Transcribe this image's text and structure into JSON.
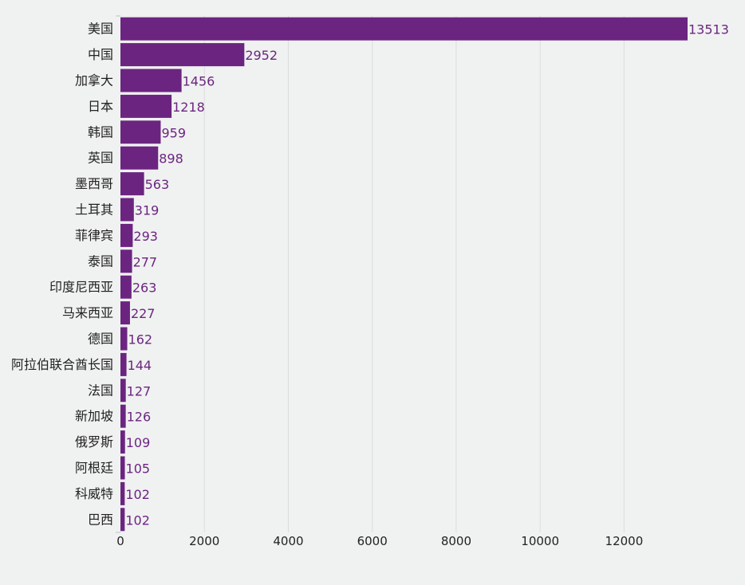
{
  "colors": {
    "background": "#f0f1f1",
    "bar": "#6b2580",
    "value_label": "#6b2580",
    "text": "#222222",
    "grid": "#dcdcdc"
  },
  "chart_data": {
    "type": "bar",
    "orientation": "horizontal",
    "categories": [
      "美国",
      "中国",
      "加拿大",
      "日本",
      "韩国",
      "英国",
      "墨西哥",
      "土耳其",
      "菲律宾",
      "泰国",
      "印度尼西亚",
      "马来西亚",
      "德国",
      "阿拉伯联合酋长国",
      "法国",
      "新加坡",
      "俄罗斯",
      "阿根廷",
      "科威特",
      "巴西"
    ],
    "values": [
      13513,
      2952,
      1456,
      1218,
      959,
      898,
      563,
      319,
      293,
      277,
      263,
      227,
      162,
      144,
      127,
      126,
      109,
      105,
      102,
      102
    ],
    "xlim": [
      0,
      13513
    ],
    "x_ticks": [
      0,
      2000,
      4000,
      6000,
      8000,
      10000,
      12000
    ],
    "grid": "vertical",
    "legend": "none",
    "data_labels": true
  }
}
